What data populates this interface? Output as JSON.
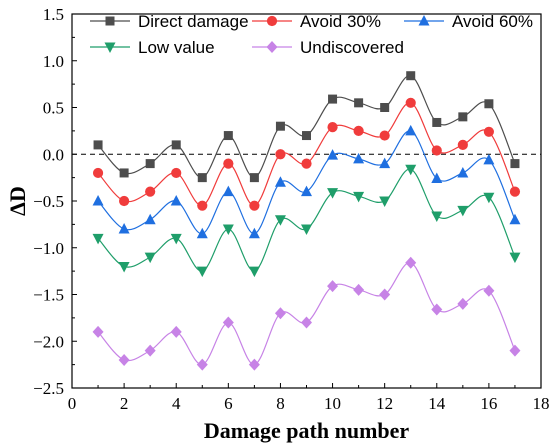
{
  "chart_data": {
    "type": "line",
    "xlabel": "Damage path number",
    "ylabel": "ΔD",
    "xlim": [
      0,
      18
    ],
    "ylim": [
      -2.5,
      1.5
    ],
    "xticks": [
      0,
      2,
      4,
      6,
      8,
      10,
      12,
      14,
      16,
      18
    ],
    "yticks": [
      -2.5,
      -2.0,
      -1.5,
      -1.0,
      -0.5,
      0.0,
      0.5,
      1.0,
      1.5
    ],
    "ytick_labels": [
      "−2.5",
      "−2.0",
      "−1.5",
      "−1.0",
      "−0.5",
      "0.0",
      "0.5",
      "1.0",
      "1.5"
    ],
    "reference_line": {
      "y": 0,
      "style": "dashed"
    },
    "grid": false,
    "legend_position": "top",
    "x": [
      1,
      2,
      3,
      4,
      5,
      6,
      7,
      8,
      9,
      10,
      11,
      12,
      13,
      14,
      15,
      16,
      17
    ],
    "series": [
      {
        "name": "Direct damage",
        "color": "#4d4d4d",
        "marker": "square",
        "values": [
          0.1,
          -0.2,
          -0.1,
          0.1,
          -0.25,
          0.2,
          -0.25,
          0.3,
          0.2,
          0.59,
          0.55,
          0.5,
          0.84,
          0.34,
          0.4,
          0.54,
          -0.1
        ]
      },
      {
        "name": "Avoid 30%",
        "color": "#f03c3c",
        "marker": "circle",
        "values": [
          -0.2,
          -0.5,
          -0.4,
          -0.2,
          -0.55,
          -0.1,
          -0.55,
          0.0,
          -0.1,
          0.29,
          0.25,
          0.2,
          0.55,
          0.04,
          0.1,
          0.24,
          -0.4
        ]
      },
      {
        "name": "Avoid 60%",
        "color": "#1f6fe0",
        "marker": "triangle-up",
        "values": [
          -0.5,
          -0.8,
          -0.7,
          -0.5,
          -0.85,
          -0.4,
          -0.85,
          -0.3,
          -0.4,
          -0.01,
          -0.05,
          -0.1,
          0.25,
          -0.26,
          -0.2,
          -0.06,
          -0.7
        ]
      },
      {
        "name": "Low value",
        "color": "#1f9e6a",
        "marker": "triangle-down",
        "values": [
          -0.9,
          -1.2,
          -1.1,
          -0.9,
          -1.25,
          -0.8,
          -1.25,
          -0.7,
          -0.8,
          -0.41,
          -0.45,
          -0.5,
          -0.16,
          -0.66,
          -0.6,
          -0.46,
          -1.1
        ]
      },
      {
        "name": "Undiscovered",
        "color": "#c783e6",
        "marker": "diamond",
        "values": [
          -1.9,
          -2.2,
          -2.1,
          -1.9,
          -2.25,
          -1.8,
          -2.25,
          -1.7,
          -1.8,
          -1.41,
          -1.45,
          -1.5,
          -1.16,
          -1.66,
          -1.6,
          -1.46,
          -2.1
        ]
      }
    ]
  }
}
